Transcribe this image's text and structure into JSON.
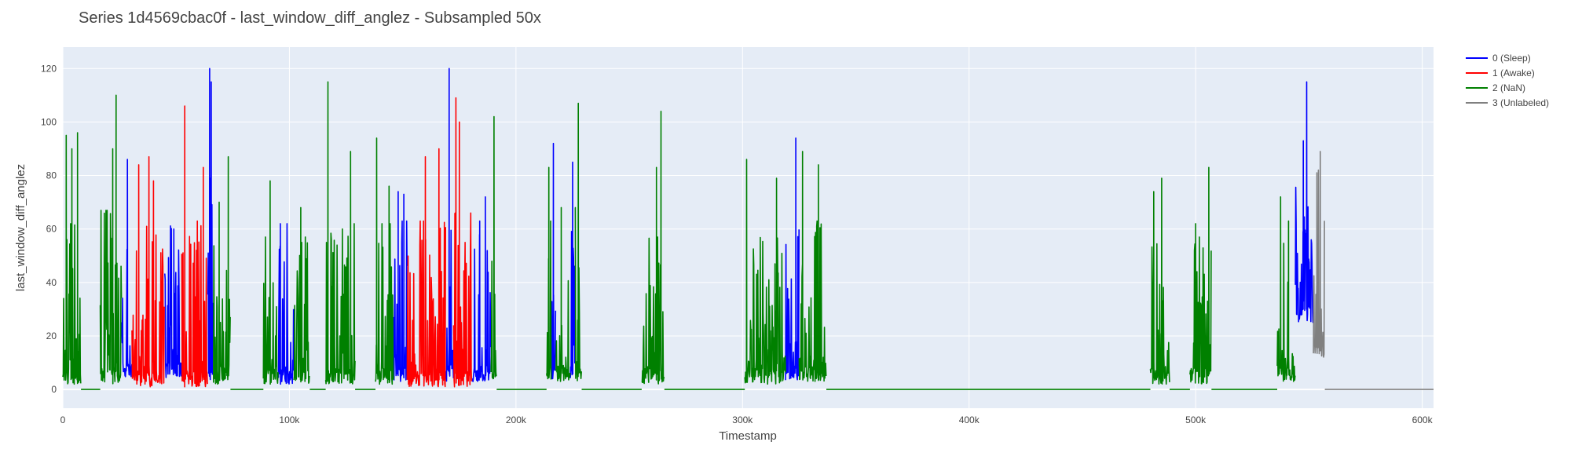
{
  "chart_data": {
    "type": "line",
    "title": "Series 1d4569cbac0f - last_window_diff_anglez - Subsampled 50x",
    "xlabel": "Timestamp",
    "ylabel": "last_window_diff_anglez",
    "xlim": [
      0,
      605000
    ],
    "ylim": [
      -7,
      128
    ],
    "x_ticks": [
      {
        "value": 0,
        "label": "0"
      },
      {
        "value": 100000,
        "label": "100k"
      },
      {
        "value": 200000,
        "label": "200k"
      },
      {
        "value": 300000,
        "label": "300k"
      },
      {
        "value": 400000,
        "label": "400k"
      },
      {
        "value": 500000,
        "label": "500k"
      },
      {
        "value": 600000,
        "label": "600k"
      }
    ],
    "y_ticks": [
      {
        "value": 0,
        "label": "0"
      },
      {
        "value": 20,
        "label": "20"
      },
      {
        "value": 40,
        "label": "40"
      },
      {
        "value": 60,
        "label": "60"
      },
      {
        "value": 80,
        "label": "80"
      },
      {
        "value": 100,
        "label": "100"
      },
      {
        "value": 120,
        "label": "120"
      }
    ],
    "grid": true,
    "legend_position": "top-right",
    "colors": {
      "plot_bg": "#e5ecf6",
      "grid": "#ffffff",
      "text": "#444444"
    },
    "series": [
      {
        "name": "0 (Sleep)",
        "color": "#0000ff",
        "segments": [
          {
            "start": 26000,
            "end": 30500,
            "baseline": 4,
            "amplitude": 40,
            "peaks": [
              [
                28500,
                86
              ]
            ]
          },
          {
            "start": 45000,
            "end": 52500,
            "baseline": 4,
            "amplitude": 38,
            "peaks": [
              [
                49000,
                60
              ]
            ]
          },
          {
            "start": 64000,
            "end": 66500,
            "baseline": 2,
            "amplitude": 60,
            "peaks": [
              [
                64800,
                120
              ],
              [
                65500,
                115
              ]
            ]
          },
          {
            "start": 95000,
            "end": 102000,
            "baseline": 2,
            "amplitude": 40,
            "peaks": [
              [
                96000,
                62
              ]
            ]
          },
          {
            "start": 146000,
            "end": 152000,
            "baseline": 3,
            "amplitude": 40,
            "peaks": [
              [
                148000,
                74
              ],
              [
                150500,
                73
              ]
            ]
          },
          {
            "start": 169000,
            "end": 172500,
            "baseline": 3,
            "amplitude": 55,
            "peaks": [
              [
                170500,
                120
              ]
            ]
          },
          {
            "start": 180500,
            "end": 189000,
            "baseline": 3,
            "amplitude": 35,
            "peaks": [
              [
                184000,
                63
              ],
              [
                186500,
                72
              ]
            ]
          },
          {
            "start": 215500,
            "end": 217500,
            "baseline": 4,
            "amplitude": 40,
            "peaks": [
              [
                216500,
                92
              ]
            ]
          },
          {
            "start": 224000,
            "end": 226000,
            "baseline": 4,
            "amplitude": 40,
            "peaks": [
              [
                225000,
                85
              ]
            ]
          },
          {
            "start": 319000,
            "end": 325000,
            "baseline": 3,
            "amplitude": 38,
            "peaks": [
              [
                323500,
                94
              ]
            ]
          },
          {
            "start": 544000,
            "end": 552000,
            "baseline": 25,
            "amplitude": 35,
            "peaks": [
              [
                547500,
                93
              ],
              [
                549000,
                115
              ]
            ]
          }
        ]
      },
      {
        "name": "1 (Awake)",
        "color": "#ff0000",
        "segments": [
          {
            "start": 30500,
            "end": 45000,
            "baseline": 1,
            "amplitude": 40,
            "peaks": [
              [
                33500,
                84
              ],
              [
                38000,
                87
              ],
              [
                40000,
                78
              ]
            ]
          },
          {
            "start": 52500,
            "end": 64000,
            "baseline": 1,
            "amplitude": 42,
            "peaks": [
              [
                53800,
                106
              ],
              [
                62000,
                83
              ]
            ]
          },
          {
            "start": 152000,
            "end": 169000,
            "baseline": 1,
            "amplitude": 42,
            "peaks": [
              [
                160000,
                87
              ],
              [
                166000,
                90
              ]
            ]
          },
          {
            "start": 172500,
            "end": 180500,
            "baseline": 1,
            "amplitude": 45,
            "peaks": [
              [
                173500,
                109
              ],
              [
                175000,
                100
              ]
            ]
          }
        ]
      },
      {
        "name": "2 (NaN)",
        "color": "#008000",
        "segments": [
          {
            "start": 0,
            "end": 8000,
            "baseline": 2,
            "amplitude": 40,
            "peaks": [
              [
                1500,
                95
              ],
              [
                4000,
                90
              ],
              [
                6500,
                96
              ]
            ]
          },
          {
            "start": 8000,
            "end": 16500,
            "flat": 0
          },
          {
            "start": 16500,
            "end": 26000,
            "baseline": 2,
            "amplitude": 45,
            "peaks": [
              [
                23500,
                110
              ],
              [
                22000,
                90
              ]
            ]
          },
          {
            "start": 66500,
            "end": 74000,
            "baseline": 2,
            "amplitude": 35,
            "peaks": [
              [
                73000,
                87
              ],
              [
                69000,
                70
              ]
            ]
          },
          {
            "start": 74000,
            "end": 88500,
            "flat": 0
          },
          {
            "start": 88500,
            "end": 95000,
            "baseline": 2,
            "amplitude": 35,
            "peaks": [
              [
                91500,
                78
              ]
            ]
          },
          {
            "start": 102000,
            "end": 109000,
            "baseline": 2,
            "amplitude": 35,
            "peaks": [
              [
                105000,
                68
              ]
            ]
          },
          {
            "start": 109000,
            "end": 116000,
            "flat": 0
          },
          {
            "start": 116000,
            "end": 129000,
            "baseline": 2,
            "amplitude": 40,
            "peaks": [
              [
                117000,
                115
              ],
              [
                127000,
                89
              ]
            ]
          },
          {
            "start": 129000,
            "end": 138000,
            "flat": 0
          },
          {
            "start": 138000,
            "end": 146000,
            "baseline": 2,
            "amplitude": 40,
            "peaks": [
              [
                138500,
                94
              ],
              [
                144000,
                76
              ]
            ]
          },
          {
            "start": 189000,
            "end": 191500,
            "baseline": 2,
            "amplitude": 45,
            "peaks": [
              [
                190300,
                102
              ]
            ]
          },
          {
            "start": 191500,
            "end": 213500,
            "flat": 0
          },
          {
            "start": 213500,
            "end": 215500,
            "baseline": 3,
            "amplitude": 40,
            "peaks": [
              [
                214500,
                83
              ]
            ]
          },
          {
            "start": 217500,
            "end": 224000,
            "baseline": 3,
            "amplitude": 30,
            "peaks": [
              [
                220000,
                68
              ]
            ]
          },
          {
            "start": 226000,
            "end": 229000,
            "baseline": 3,
            "amplitude": 45,
            "peaks": [
              [
                227500,
                107
              ]
            ]
          },
          {
            "start": 229000,
            "end": 255500,
            "flat": 0
          },
          {
            "start": 255500,
            "end": 265500,
            "baseline": 2,
            "amplitude": 35,
            "peaks": [
              [
                264000,
                104
              ],
              [
                262000,
                83
              ]
            ]
          },
          {
            "start": 265500,
            "end": 301000,
            "flat": 0
          },
          {
            "start": 301000,
            "end": 319000,
            "baseline": 2,
            "amplitude": 35,
            "peaks": [
              [
                301800,
                86
              ],
              [
                315000,
                79
              ]
            ]
          },
          {
            "start": 325000,
            "end": 337000,
            "baseline": 3,
            "amplitude": 40,
            "peaks": [
              [
                326500,
                89
              ],
              [
                333500,
                84
              ]
            ]
          },
          {
            "start": 337000,
            "end": 480000,
            "flat": 0
          },
          {
            "start": 480000,
            "end": 488500,
            "baseline": 2,
            "amplitude": 35,
            "peaks": [
              [
                481500,
                74
              ],
              [
                485000,
                79
              ]
            ]
          },
          {
            "start": 488500,
            "end": 497500,
            "flat": 0
          },
          {
            "start": 497500,
            "end": 507000,
            "baseline": 2,
            "amplitude": 35,
            "peaks": [
              [
                505800,
                83
              ],
              [
                500000,
                62
              ]
            ]
          },
          {
            "start": 507000,
            "end": 536000,
            "flat": 0
          },
          {
            "start": 536000,
            "end": 544000,
            "baseline": 3,
            "amplitude": 35,
            "peaks": [
              [
                537500,
                72
              ],
              [
                541000,
                63
              ]
            ]
          }
        ]
      },
      {
        "name": "3 (Unlabeled)",
        "color": "#808080",
        "segments": [
          {
            "start": 552000,
            "end": 557000,
            "baseline": 12,
            "amplitude": 50,
            "peaks": [
              [
                555000,
                89
              ],
              [
                553500,
                81
              ]
            ]
          },
          {
            "start": 557000,
            "end": 605000,
            "flat": 0
          }
        ]
      }
    ]
  }
}
